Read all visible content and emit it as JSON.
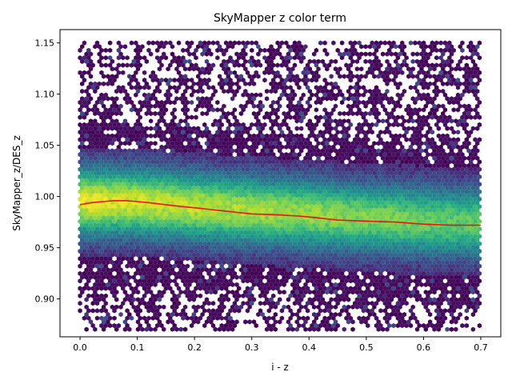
{
  "chart_data": {
    "type": "hexbin",
    "title": "SkyMapper z color term",
    "xlabel": "i - z",
    "ylabel": "SkyMapper_z/DES_z",
    "xlim": [
      -0.035,
      0.735
    ],
    "ylim": [
      0.863,
      1.163
    ],
    "x_ticks": [
      0.0,
      0.1,
      0.2,
      0.3,
      0.4,
      0.5,
      0.6,
      0.7
    ],
    "x_tick_labels": [
      "0.0",
      "0.1",
      "0.2",
      "0.3",
      "0.4",
      "0.5",
      "0.6",
      "0.7"
    ],
    "y_ticks": [
      0.9,
      0.95,
      1.0,
      1.05,
      1.1,
      1.15
    ],
    "y_tick_labels": [
      "0.90",
      "0.95",
      "1.00",
      "1.05",
      "1.10",
      "1.15"
    ],
    "density_colormap": "viridis",
    "data_extent": {
      "x": [
        0.0,
        0.7
      ],
      "y": [
        0.87,
        1.15
      ]
    },
    "density_ridge": {
      "x": [
        0.0,
        0.1,
        0.2,
        0.3,
        0.4,
        0.5,
        0.6,
        0.7
      ],
      "y": [
        0.995,
        0.994,
        0.99,
        0.986,
        0.983,
        0.979,
        0.976,
        0.974
      ]
    },
    "series": [
      {
        "type": "line",
        "color": "#e8160c",
        "x": [
          0.0,
          0.02,
          0.04,
          0.06,
          0.08,
          0.1,
          0.12,
          0.15,
          0.18,
          0.2,
          0.25,
          0.3,
          0.35,
          0.38,
          0.4,
          0.45,
          0.5,
          0.55,
          0.6,
          0.65,
          0.7
        ],
        "y": [
          0.992,
          0.994,
          0.995,
          0.996,
          0.996,
          0.995,
          0.994,
          0.992,
          0.99,
          0.989,
          0.986,
          0.983,
          0.982,
          0.981,
          0.98,
          0.977,
          0.976,
          0.975,
          0.973,
          0.972,
          0.972
        ]
      }
    ]
  }
}
